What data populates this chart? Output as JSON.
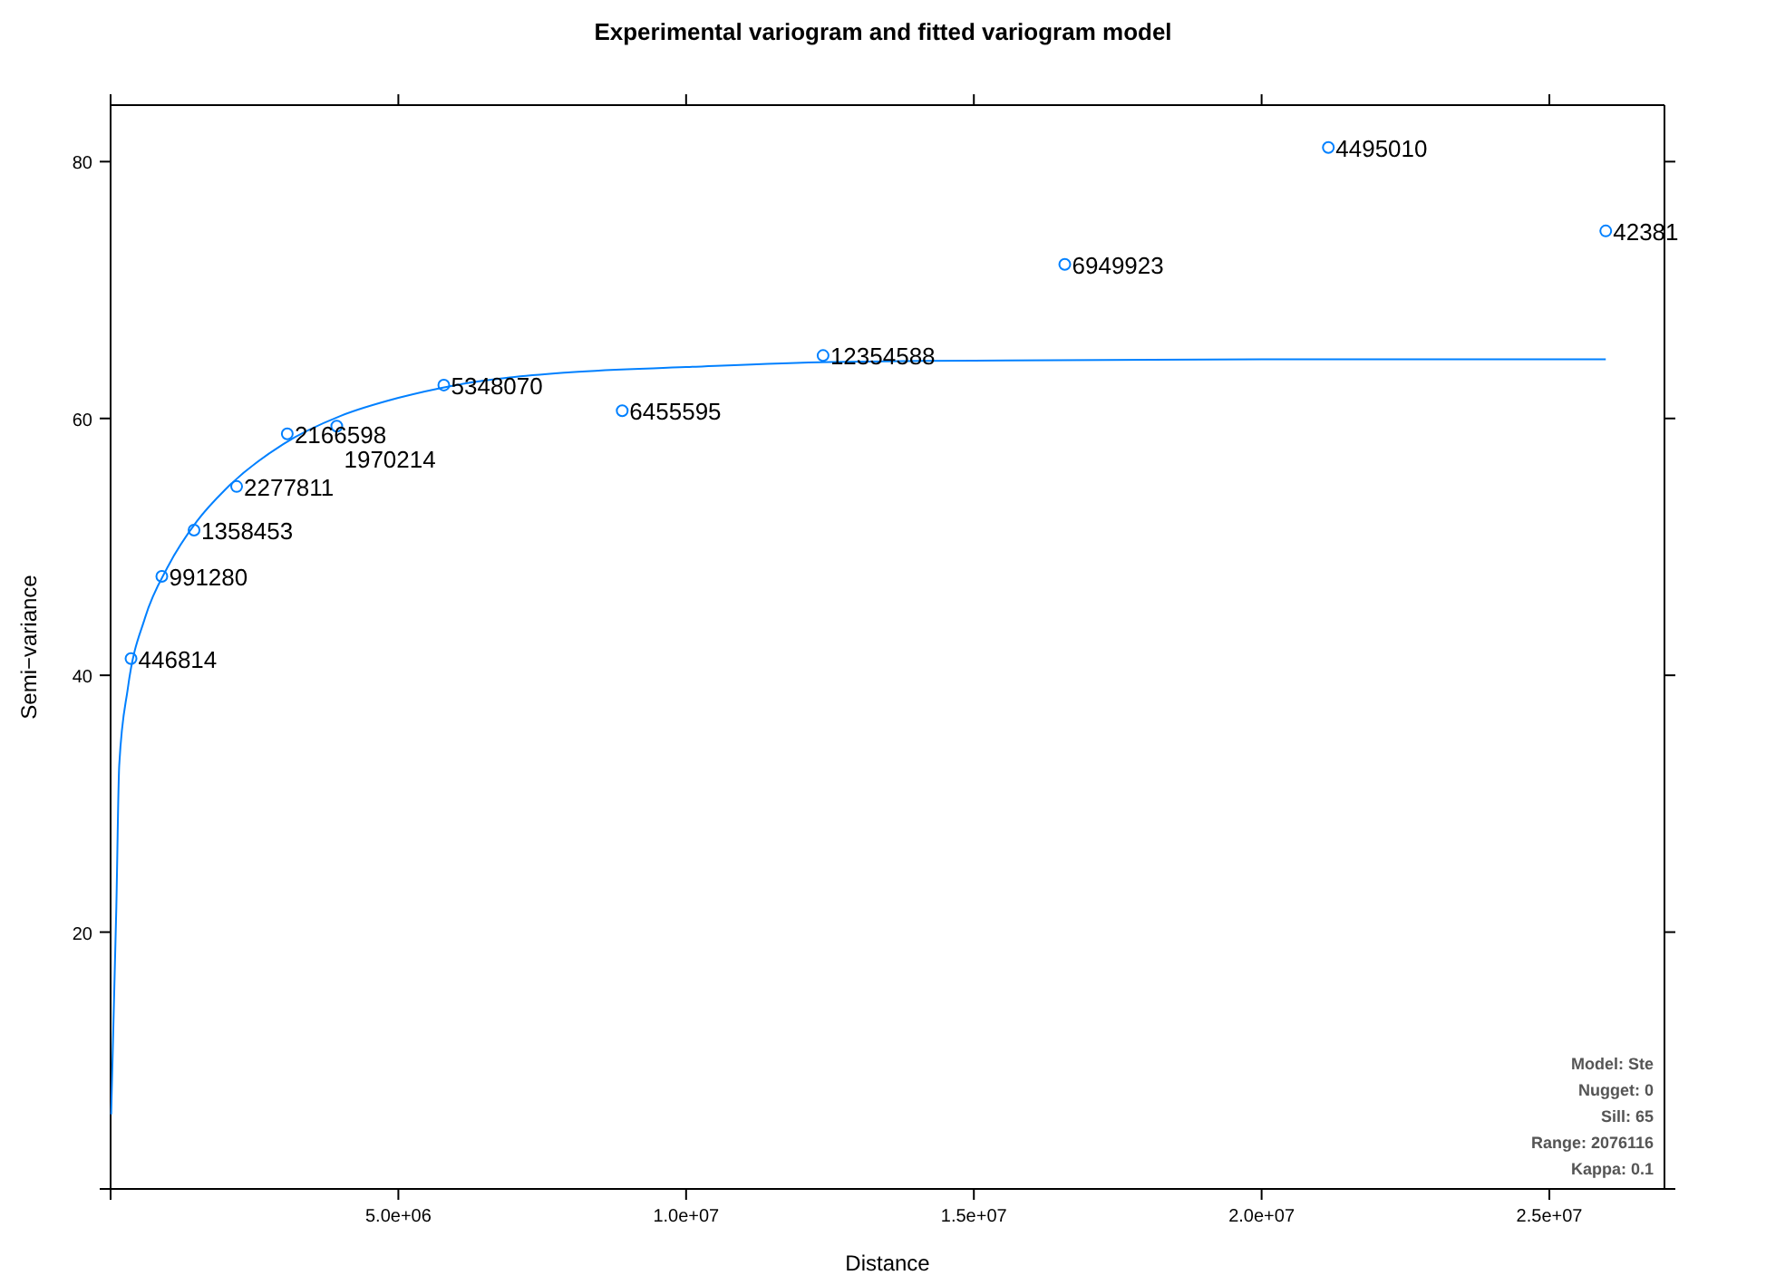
{
  "chart_data": {
    "type": "scatter",
    "title": "Experimental variogram and fitted variogram model",
    "xlabel": "Distance",
    "ylabel": "Semi−variance",
    "xlim": [
      0,
      27000000
    ],
    "ylim": [
      0,
      84.4
    ],
    "xticks": [
      {
        "value": 0,
        "label": null
      },
      {
        "value": 5000000,
        "label": "5.0e+06"
      },
      {
        "value": 10000000,
        "label": "1.0e+07"
      },
      {
        "value": 15000000,
        "label": "1.5e+07"
      },
      {
        "value": 20000000,
        "label": "2.0e+07"
      },
      {
        "value": 25000000,
        "label": "2.5e+07"
      }
    ],
    "yticks": [
      {
        "value": 0,
        "label": null
      },
      20,
      40,
      60,
      80
    ],
    "grid": false,
    "series": [
      {
        "color": "#0080ff",
        "marker": "circle",
        "x": [
          355000,
          890000,
          1450000,
          2190000,
          3070000,
          3930000,
          5790000,
          8890000,
          12380000,
          16580000,
          21160000,
          25980000
        ],
        "values": [
          41.3,
          47.7,
          51.3,
          54.7,
          58.8,
          59.4,
          62.6,
          60.6,
          64.9,
          72.0,
          81.1,
          74.6
        ]
      },
      {
        "type": "line",
        "color": "#0080ff",
        "line_style": "solid",
        "x": [
          10000,
          100000,
          150000,
          300000,
          600000,
          1000000,
          1500000,
          2000000,
          3000000,
          4000000,
          5000000,
          6000000,
          8000000,
          10000000,
          12500000,
          15000000,
          20000000,
          25980000
        ],
        "values": [
          5.8,
          22,
          33,
          39,
          44.5,
          48.5,
          52,
          54.5,
          58,
          60.2,
          61.6,
          62.6,
          63.6,
          64.0,
          64.4,
          64.5,
          64.6,
          64.6
        ]
      }
    ],
    "annotations": [
      {
        "text": "446814",
        "x": 355000,
        "y": 41.3
      },
      {
        "text": "991280",
        "x": 890000,
        "y": 47.7
      },
      {
        "text": "1358453",
        "x": 1450000,
        "y": 51.3
      },
      {
        "text": "2277811",
        "x": 2190000,
        "y": 54.7
      },
      {
        "text": "2166598",
        "x": 3070000,
        "y": 58.8
      },
      {
        "text": "1970214",
        "x": 3930000,
        "y": 59.4
      },
      {
        "text": "5348070",
        "x": 5790000,
        "y": 62.6
      },
      {
        "text": "6455595",
        "x": 8890000,
        "y": 60.6
      },
      {
        "text": "12354588",
        "x": 12380000,
        "y": 64.9
      },
      {
        "text": "6949923",
        "x": 16580000,
        "y": 72.0
      },
      {
        "text": "4495010",
        "x": 21160000,
        "y": 81.1
      },
      {
        "text": "42381",
        "x": 25980000,
        "y": 74.6
      },
      "Model: Ste",
      "Nugget: 0",
      "Sill: 65",
      "Range: 2076116",
      "Kappa: 0.1"
    ]
  }
}
